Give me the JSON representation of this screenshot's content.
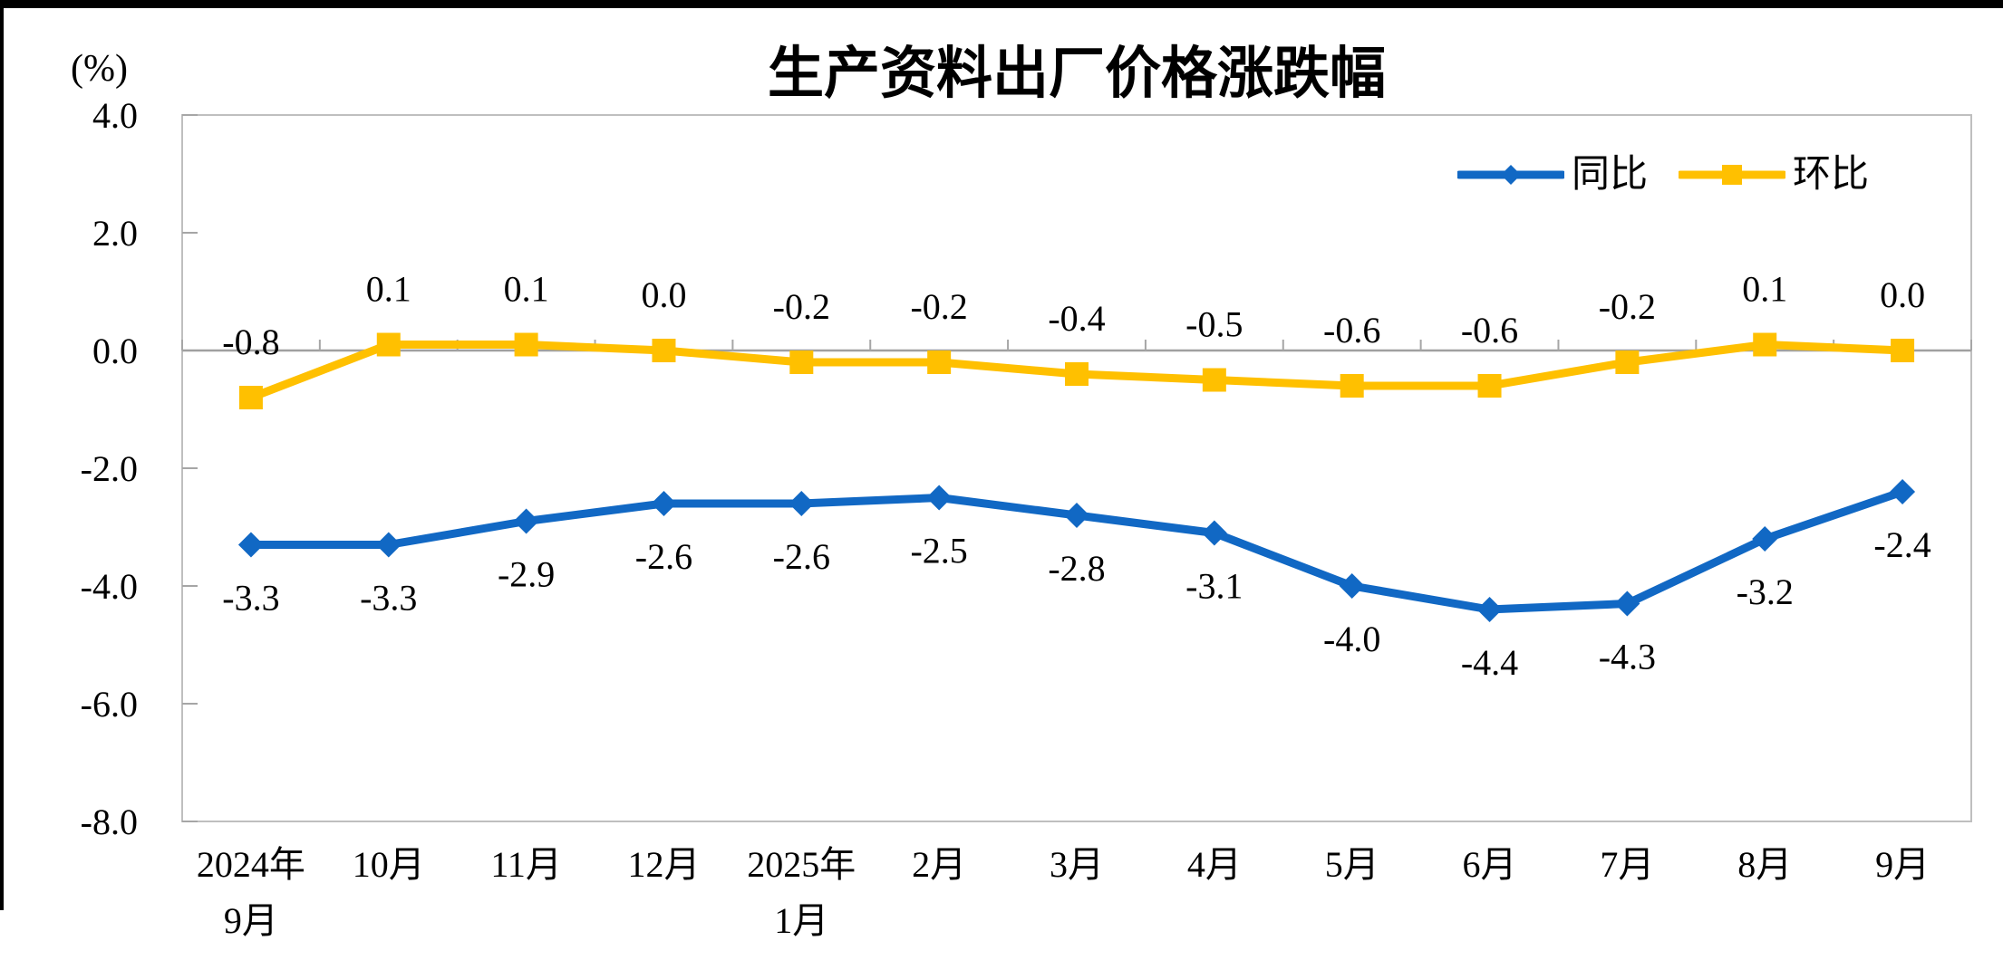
{
  "title": "生产资料出厂价格涨跌幅",
  "axis_unit_label": "(%)",
  "colors": {
    "yoy_blue": "#1168C4",
    "mom_yellow": "#FFC000",
    "plot_border": "#BFBFBF",
    "zero_axis": "#A0A0A0",
    "tick": "#A6A6A6",
    "text": "#000000",
    "background": "#FFFFFF",
    "window_edge": "#000000"
  },
  "legend": [
    {
      "key": "yoy",
      "label": "同比",
      "color": "#1168C4",
      "marker": "diamond"
    },
    {
      "key": "mom",
      "label": "环比",
      "color": "#FFC000",
      "marker": "square"
    }
  ],
  "chart_data": {
    "type": "line",
    "title": "生产资料出厂价格涨跌幅",
    "ylabel": "(%)",
    "xlabel": "",
    "ylim": [
      -8.0,
      4.0
    ],
    "ytick_interval": 2.0,
    "yticks": [
      4.0,
      2.0,
      0.0,
      -2.0,
      -4.0,
      -6.0,
      -8.0
    ],
    "ytick_labels": [
      "4.0",
      "2.0",
      "0.0",
      "-2.0",
      "-4.0",
      "-6.0",
      "-8.0"
    ],
    "categories": [
      "2024年\n9月",
      "10月",
      "11月",
      "12月",
      "2025年\n1月",
      "2月",
      "3月",
      "4月",
      "5月",
      "6月",
      "7月",
      "8月",
      "9月"
    ],
    "grid": "zero-line-only",
    "legend_position": "top-right-inside",
    "series": [
      {
        "key": "yoy",
        "name": "同比",
        "color": "#1168C4",
        "marker": "diamond",
        "label_position": "below",
        "values": [
          -3.3,
          -3.3,
          -2.9,
          -2.6,
          -2.6,
          -2.5,
          -2.8,
          -3.1,
          -4.0,
          -4.4,
          -4.3,
          -3.2,
          -2.4
        ],
        "data_labels": [
          "-3.3",
          "-3.3",
          "-2.9",
          "-2.6",
          "-2.6",
          "-2.5",
          "-2.8",
          "-3.1",
          "-4.0",
          "-4.4",
          "-4.3",
          "-3.2",
          "-2.4"
        ]
      },
      {
        "key": "mom",
        "name": "环比",
        "color": "#FFC000",
        "marker": "square",
        "label_position": "above",
        "values": [
          -0.8,
          0.1,
          0.1,
          0.0,
          -0.2,
          -0.2,
          -0.4,
          -0.5,
          -0.6,
          -0.6,
          -0.2,
          0.1,
          0.0
        ],
        "data_labels": [
          "-0.8",
          "0.1",
          "0.1",
          "0.0",
          "-0.2",
          "-0.2",
          "-0.4",
          "-0.5",
          "-0.6",
          "-0.6",
          "-0.2",
          "0.1",
          "0.0"
        ]
      }
    ]
  }
}
